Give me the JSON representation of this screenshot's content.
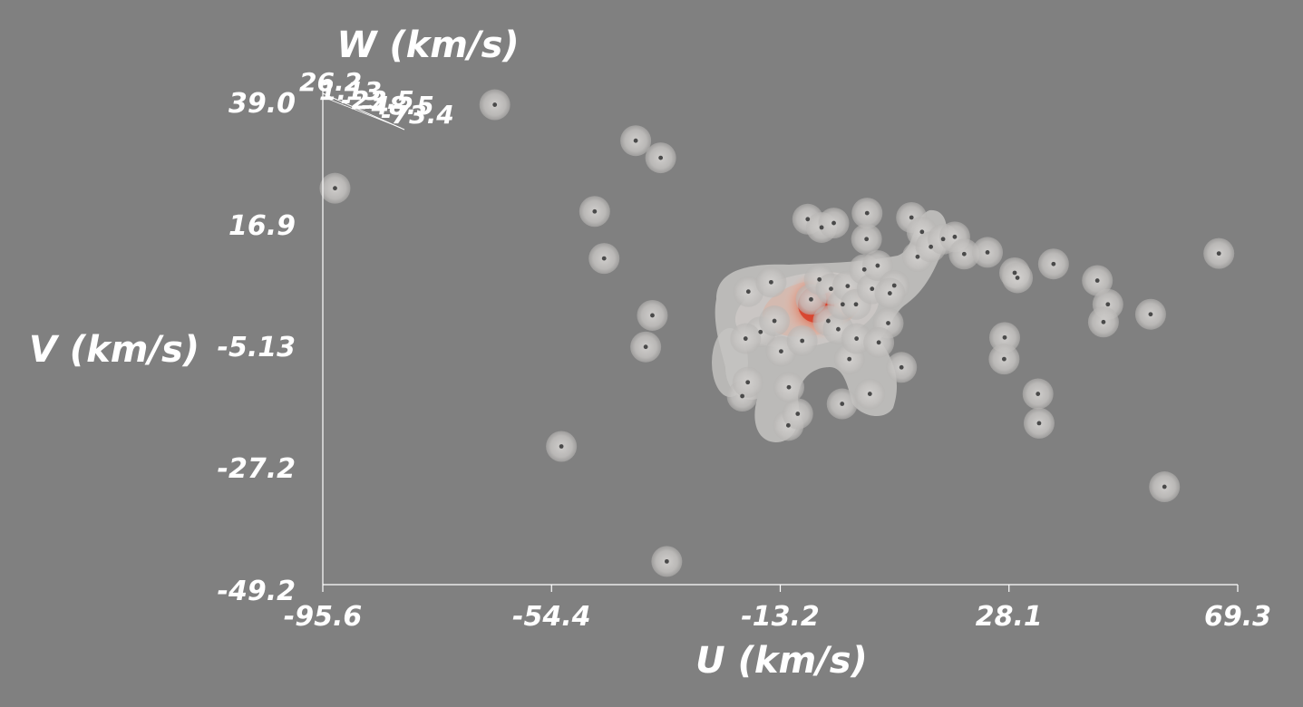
{
  "chart_data": {
    "type": "scatter",
    "xlabel": "U (km/s)",
    "ylabel": "V (km/s)",
    "zlabel": "W (km/s)",
    "xlim": [
      -95.6,
      69.3
    ],
    "ylim": [
      -49.2,
      39.0
    ],
    "x_ticks": [
      "-95.6",
      "-54.4",
      "-13.2",
      "28.1",
      "69.3"
    ],
    "y_ticks": [
      "39.0",
      "16.9",
      "-5.13",
      "-27.2",
      "-49.2"
    ],
    "z_ticks": [
      "26.2",
      "1.13",
      "-23.5",
      "-48.5",
      "-73.4"
    ],
    "density_colors": {
      "halo": "#c8c6c4",
      "core_outer": "#e6a08a",
      "core_inner": "#d9432c",
      "point": "#4a4a4a"
    },
    "points": [
      {
        "x": -93.4,
        "y": 22.5
      },
      {
        "x": -64.6,
        "y": 37.6
      },
      {
        "x": -46.6,
        "y": 18.3
      },
      {
        "x": -39.2,
        "y": 31.1
      },
      {
        "x": -34.7,
        "y": 28.0
      },
      {
        "x": -44.9,
        "y": 9.8
      },
      {
        "x": -52.6,
        "y": -24.2
      },
      {
        "x": -36.2,
        "y": -0.5
      },
      {
        "x": -37.4,
        "y": -6.2
      },
      {
        "x": -33.6,
        "y": -45.0
      },
      {
        "x": -18.9,
        "y": 3.8
      },
      {
        "x": -20.0,
        "y": -15.1
      },
      {
        "x": -19.0,
        "y": -12.6
      },
      {
        "x": -16.7,
        "y": -3.5
      },
      {
        "x": -19.4,
        "y": -4.7
      },
      {
        "x": -14.8,
        "y": 5.5
      },
      {
        "x": -14.2,
        "y": -1.5
      },
      {
        "x": -13.0,
        "y": -7.0
      },
      {
        "x": -11.7,
        "y": -20.4
      },
      {
        "x": -10.0,
        "y": -18.3
      },
      {
        "x": -11.6,
        "y": -13.5
      },
      {
        "x": -9.2,
        "y": -5.1
      },
      {
        "x": -7.6,
        "y": 2.4
      },
      {
        "x": -6.1,
        "y": 6.0
      },
      {
        "x": -8.2,
        "y": 16.9
      },
      {
        "x": -5.7,
        "y": 15.4
      },
      {
        "x": -4.5,
        "y": -1.5
      },
      {
        "x": -4.0,
        "y": 4.3
      },
      {
        "x": -2.7,
        "y": -3.0
      },
      {
        "x": -3.5,
        "y": 16.2
      },
      {
        "x": -1.9,
        "y": 1.5
      },
      {
        "x": -1.0,
        "y": 4.8
      },
      {
        "x": -0.7,
        "y": -8.4
      },
      {
        "x": 0.5,
        "y": 1.5
      },
      {
        "x": -2.0,
        "y": -16.5
      },
      {
        "x": 0.6,
        "y": -4.7
      },
      {
        "x": 2.0,
        "y": 7.8
      },
      {
        "x": 3.4,
        "y": 4.3
      },
      {
        "x": 2.5,
        "y": 18.0
      },
      {
        "x": 2.4,
        "y": 13.3
      },
      {
        "x": 3.0,
        "y": -14.7
      },
      {
        "x": 4.4,
        "y": 8.5
      },
      {
        "x": 6.3,
        "y": -1.9
      },
      {
        "x": 4.6,
        "y": -5.4
      },
      {
        "x": 7.4,
        "y": 4.9
      },
      {
        "x": 6.6,
        "y": 3.5
      },
      {
        "x": 8.7,
        "y": -9.9
      },
      {
        "x": 11.6,
        "y": 10.1
      },
      {
        "x": 10.5,
        "y": 17.2
      },
      {
        "x": 12.4,
        "y": 14.6
      },
      {
        "x": 14.0,
        "y": 11.9
      },
      {
        "x": 16.2,
        "y": 13.3
      },
      {
        "x": 18.3,
        "y": 13.7
      },
      {
        "x": 20.0,
        "y": 10.6
      },
      {
        "x": 24.2,
        "y": 10.9
      },
      {
        "x": 27.3,
        "y": -4.5
      },
      {
        "x": 27.2,
        "y": -8.4
      },
      {
        "x": 29.1,
        "y": 7.2
      },
      {
        "x": 29.6,
        "y": 6.3
      },
      {
        "x": 33.3,
        "y": -14.7
      },
      {
        "x": 33.5,
        "y": -20.0
      },
      {
        "x": 36.1,
        "y": 8.8
      },
      {
        "x": 45.9,
        "y": 1.5
      },
      {
        "x": 53.6,
        "y": -0.3
      },
      {
        "x": 56.1,
        "y": -31.5
      },
      {
        "x": 65.9,
        "y": 10.7
      },
      {
        "x": 45.1,
        "y": -1.7
      },
      {
        "x": 44.0,
        "y": 5.8
      }
    ]
  }
}
